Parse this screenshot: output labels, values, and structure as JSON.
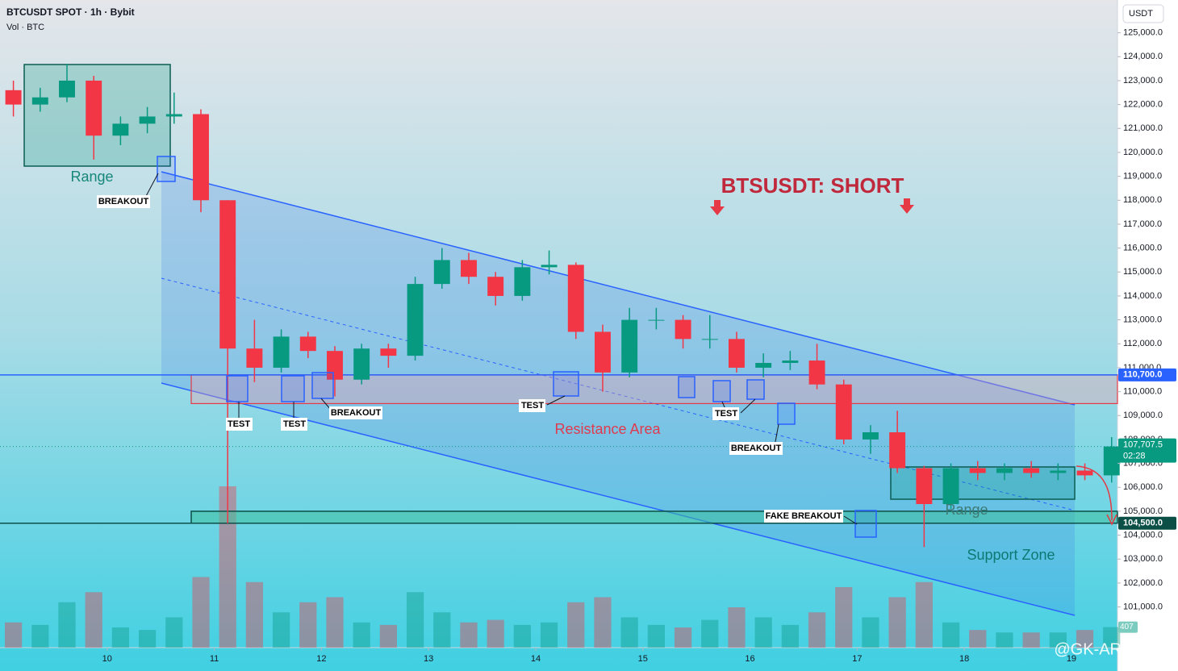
{
  "chart_data": {
    "type": "candlestick",
    "symbol": "BTCUSDT SPOT · 1h · Bybit",
    "volume_label": "Vol · BTC",
    "currency": "USDT",
    "title": "BTSUSDT: SHORT",
    "watermark": "@GK-ARONNO",
    "x": [
      9,
      9.25,
      9.5,
      9.75,
      10,
      10.25,
      10.5,
      10.75,
      11,
      11.25,
      11.5,
      11.75,
      12,
      12.25,
      12.5,
      12.75,
      13,
      13.25,
      13.5,
      13.75,
      14,
      14.25,
      14.5,
      14.75,
      15,
      15.25,
      15.5,
      15.75,
      16,
      16.25,
      16.5,
      16.75,
      17,
      17.25,
      17.5,
      17.75,
      18,
      18.25,
      18.5,
      18.75,
      19,
      19.25
    ],
    "open": [
      122600,
      122000,
      122300,
      123000,
      120700,
      121200,
      121500,
      121600,
      118000,
      111800,
      111000,
      112300,
      111700,
      110500,
      111800,
      111500,
      114500,
      115500,
      114800,
      114000,
      115200,
      115300,
      112500,
      110800,
      113000,
      113000,
      112200,
      112200,
      111000,
      111200,
      111300,
      110300,
      108000,
      108300,
      106800,
      105300,
      106800,
      106600,
      106800,
      106600,
      106700,
      106500
    ],
    "high": [
      123000,
      122700,
      123700,
      123200,
      121500,
      121900,
      122500,
      121800,
      118000,
      113000,
      112600,
      112500,
      111900,
      112000,
      112000,
      114800,
      116000,
      115800,
      115000,
      115500,
      115900,
      115400,
      112800,
      113500,
      113500,
      113200,
      113200,
      112500,
      111600,
      111700,
      112000,
      110500,
      108600,
      109200,
      106900,
      107000,
      107100,
      107000,
      107100,
      107000,
      107000,
      108100
    ],
    "low": [
      121500,
      121700,
      122100,
      119700,
      120300,
      120800,
      121200,
      117500,
      104500,
      110400,
      110800,
      111400,
      109800,
      110300,
      111000,
      111300,
      114300,
      114500,
      113600,
      113800,
      114900,
      112200,
      110000,
      110600,
      112600,
      111800,
      111800,
      110800,
      110600,
      110900,
      110100,
      107800,
      107400,
      106600,
      103500,
      105100,
      106300,
      106300,
      106400,
      106300,
      106300,
      106200
    ],
    "close": [
      122000,
      122300,
      123000,
      120700,
      121200,
      121500,
      121600,
      118000,
      111800,
      111000,
      112300,
      111700,
      110500,
      111800,
      111500,
      114500,
      115500,
      114800,
      114000,
      115200,
      115300,
      112500,
      110800,
      113000,
      113000,
      112200,
      112200,
      111000,
      111200,
      111300,
      110300,
      108000,
      108300,
      106800,
      105300,
      106800,
      106600,
      106800,
      106600,
      106700,
      106500,
      107707.5
    ],
    "colors": {
      "up": "#089981",
      "down": "#f23645"
    },
    "volume": {
      "values": [
        500,
        450,
        900,
        1100,
        400,
        350,
        600,
        1400,
        3200,
        1300,
        700,
        900,
        1000,
        500,
        450,
        1100,
        700,
        500,
        550,
        450,
        500,
        900,
        1000,
        600,
        450,
        400,
        550,
        800,
        600,
        450,
        700,
        1200,
        600,
        1000,
        1300,
        500,
        350,
        300,
        300,
        300,
        350,
        407
      ],
      "ylim": [
        0,
        4000
      ],
      "last_label": "407"
    },
    "last_price": {
      "value": 107707.5,
      "label": "107,707.5"
    },
    "countdown": "02:28",
    "resistance": {
      "low": 109500,
      "high": {
        "value": 110700,
        "label": "110,700.0"
      }
    },
    "support": {
      "low": {
        "value": 104500,
        "label": "104,500.0"
      },
      "high": 105000
    },
    "annotations": [
      "Range",
      "BREAKOUT",
      "TEST",
      "TEST",
      "BREAKOUT",
      "TEST",
      "Resistance Area",
      "TEST",
      "BREAKOUT",
      "FAKE BREAKOUT",
      "Range",
      "Support Zone"
    ],
    "xlim": [
      9,
      19.4297
    ],
    "xticks": [
      10,
      11,
      12,
      13,
      14,
      15,
      16,
      17,
      18,
      19
    ],
    "ylim": [
      99300,
      126370
    ],
    "yticks": [
      {
        "value": 101000,
        "label": "101,000.0"
      },
      {
        "value": 102000,
        "label": "102,000.0"
      },
      {
        "value": 103000,
        "label": "103,000.0"
      },
      {
        "value": 104000,
        "label": "104,000.0"
      },
      {
        "value": 105000,
        "label": "105,000.0"
      },
      {
        "value": 106000,
        "label": "106,000.0"
      },
      {
        "value": 107000,
        "label": "107,000.0"
      },
      {
        "value": 108000,
        "label": "108,000.0"
      },
      {
        "value": 109000,
        "label": "109,000.0"
      },
      {
        "value": 110000,
        "label": "110,000.0"
      },
      {
        "value": 111000,
        "label": "111,000.0"
      },
      {
        "value": 112000,
        "label": "112,000.0"
      },
      {
        "value": 113000,
        "label": "113,000.0"
      },
      {
        "value": 114000,
        "label": "114,000.0"
      },
      {
        "value": 115000,
        "label": "115,000.0"
      },
      {
        "value": 116000,
        "label": "116,000.0"
      },
      {
        "value": 117000,
        "label": "117,000.0"
      },
      {
        "value": 118000,
        "label": "118,000.0"
      },
      {
        "value": 119000,
        "label": "119,000.0"
      },
      {
        "value": 120000,
        "label": "120,000.0"
      },
      {
        "value": 121000,
        "label": "121,000.0"
      },
      {
        "value": 122000,
        "label": "122,000.0"
      },
      {
        "value": 123000,
        "label": "123,000.0"
      },
      {
        "value": 124000,
        "label": "124,000.0"
      },
      {
        "value": 125000,
        "label": "125,000.0"
      }
    ]
  }
}
